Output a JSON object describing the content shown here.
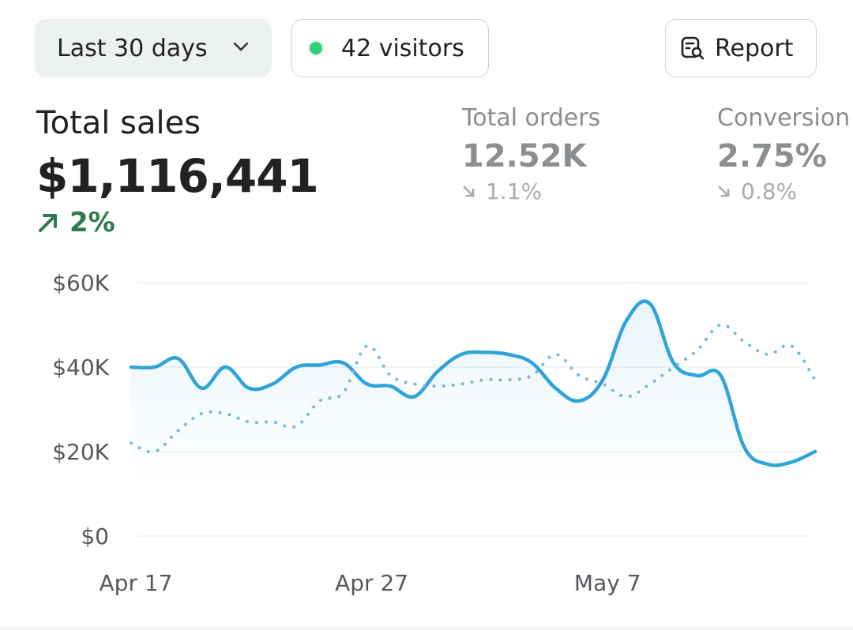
{
  "toolbar": {
    "date_range": "Last 30 days",
    "visitors": "42 visitors",
    "report": "Report"
  },
  "metrics": {
    "total_sales": {
      "label": "Total sales",
      "value": "$1,116,441",
      "delta": "2%",
      "direction": "up"
    },
    "total_orders": {
      "label": "Total orders",
      "value": "12.52K",
      "delta": "1.1%",
      "direction": "down"
    },
    "conversion": {
      "label": "Conversion",
      "value": "2.75%",
      "delta": "0.8%",
      "direction": "down"
    }
  },
  "colors": {
    "accent": "#2ea3dc",
    "positive": "#2c7a4d",
    "live_dot": "#34d17a"
  },
  "chart_data": {
    "type": "line",
    "x_tick_labels": [
      "Apr 17",
      "Apr 27",
      "May 7"
    ],
    "y_tick_labels": [
      "$60K",
      "$40K",
      "$20K",
      "$0"
    ],
    "ylim": [
      0,
      60000
    ],
    "grid": true,
    "x": [
      0,
      1,
      2,
      3,
      4,
      5,
      6,
      7,
      8,
      9,
      10,
      11,
      12,
      13,
      14,
      15,
      16,
      17,
      18,
      19,
      20,
      21,
      22,
      23,
      24,
      25,
      26,
      27,
      28,
      29
    ],
    "series": [
      {
        "style": "solid",
        "values": [
          40000,
          40000,
          42000,
          35000,
          40000,
          35000,
          36000,
          40000,
          40500,
          41000,
          36000,
          35500,
          33000,
          39000,
          43000,
          43500,
          43000,
          41000,
          35000,
          32000,
          37000,
          51000,
          55000,
          41000,
          38000,
          38000,
          21000,
          17000,
          17500,
          20000
        ]
      },
      {
        "style": "dotted",
        "values": [
          22000,
          20000,
          25000,
          29000,
          29000,
          27000,
          27000,
          26000,
          32000,
          34000,
          45000,
          38000,
          36000,
          35500,
          36000,
          37000,
          37000,
          38000,
          43000,
          38000,
          36000,
          33000,
          36000,
          40000,
          44000,
          50000,
          46000,
          43000,
          45000,
          37000
        ]
      }
    ]
  }
}
